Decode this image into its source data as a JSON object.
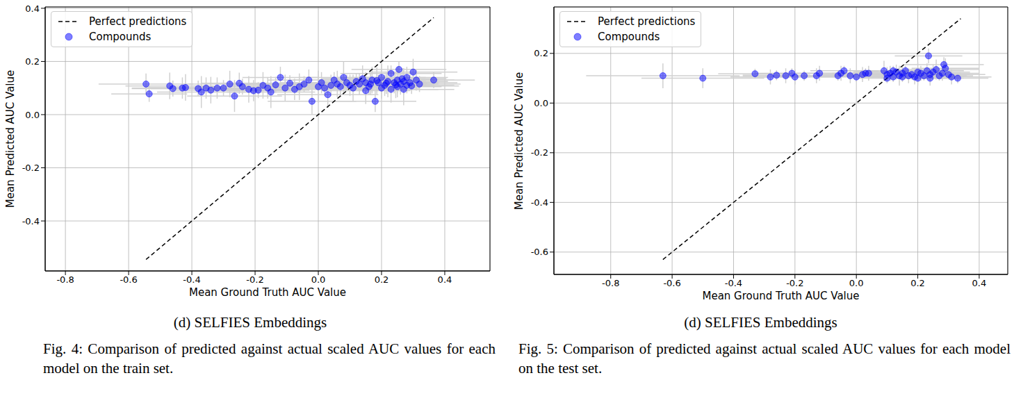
{
  "chart_data": [
    {
      "type": "scatter",
      "subcaption": "(d) SELFIES Embeddings",
      "caption": "Fig. 4: Comparison of predicted against actual scaled AUC values for each model on the train set.",
      "x_label": "Mean Ground Truth AUC Value",
      "y_label": "Mean Predicted AUC Value",
      "xlim": [
        -0.864,
        0.543
      ],
      "xticks": [
        -0.8,
        -0.6,
        -0.4,
        -0.2,
        {
          "value": 0,
          "label": "0.0"
        },
        0.2,
        0.4
      ],
      "ylim": [
        -0.588,
        0.405
      ],
      "yticks": [
        -0.4,
        -0.2,
        {
          "value": 0,
          "label": "0.0"
        },
        0.2,
        0.4
      ],
      "grid": true,
      "legend": "upper left",
      "series": [
        {
          "name": "Perfect predictions",
          "type": "line",
          "line_style": "dashed",
          "color": "#000000",
          "x": [
            -0.545,
            0.365
          ],
          "values": [
            -0.545,
            0.365
          ]
        },
        {
          "name": "Compounds",
          "type": "scatter",
          "marker": "circle",
          "color": "#0000ff",
          "x": [
            -0.545,
            -0.535,
            -0.47,
            -0.46,
            -0.43,
            -0.42,
            -0.38,
            -0.37,
            -0.355,
            -0.34,
            -0.32,
            -0.3,
            -0.28,
            -0.265,
            -0.25,
            -0.24,
            -0.22,
            -0.205,
            -0.19,
            -0.175,
            -0.16,
            -0.15,
            -0.135,
            -0.12,
            -0.105,
            -0.09,
            -0.075,
            -0.06,
            -0.045,
            -0.03,
            -0.02,
            0.0,
            0.01,
            0.02,
            0.03,
            0.04,
            0.05,
            0.06,
            0.07,
            0.08,
            0.09,
            0.1,
            0.11,
            0.12,
            0.13,
            0.14,
            0.15,
            0.16,
            0.17,
            0.18,
            0.19,
            0.2,
            0.21,
            0.22,
            0.23,
            0.24,
            0.25,
            0.255,
            0.26,
            0.27,
            0.28,
            0.29,
            0.3,
            0.31,
            0.32,
            0.23,
            0.25,
            0.27,
            0.365,
            0.2,
            0.15,
            0.28,
            0.215,
            0.245,
            0.265,
            0.295,
            0.185,
            0.165
          ],
          "values": [
            0.115,
            0.078,
            0.108,
            0.098,
            0.1,
            0.102,
            0.098,
            0.085,
            0.1,
            0.092,
            0.1,
            0.1,
            0.115,
            0.07,
            0.118,
            0.105,
            0.095,
            0.09,
            0.092,
            0.11,
            0.1,
            0.085,
            0.112,
            0.14,
            0.1,
            0.118,
            0.095,
            0.105,
            0.115,
            0.13,
            0.05,
            0.105,
            0.12,
            0.1,
            0.075,
            0.11,
            0.13,
            0.115,
            0.105,
            0.14,
            0.12,
            0.11,
            0.1,
            0.125,
            0.115,
            0.135,
            0.12,
            0.105,
            0.13,
            0.05,
            0.12,
            0.14,
            0.11,
            0.125,
            0.155,
            0.12,
            0.13,
            0.17,
            0.115,
            0.125,
            0.14,
            0.12,
            0.16,
            0.13,
            0.115,
            0.095,
            0.105,
            0.095,
            0.13,
            0.1,
            0.09,
            0.11,
            0.118,
            0.112,
            0.135,
            0.108,
            0.128,
            0.115
          ],
          "x_error": [
            0.15,
            0.12,
            0.14,
            0.13,
            0.16,
            0.12,
            0.15,
            0.14,
            0.13,
            0.12,
            0.14,
            0.16,
            0.13,
            0.15,
            0.12,
            0.14,
            0.13,
            0.15,
            0.16,
            0.12,
            0.13,
            0.14,
            0.15,
            0.12,
            0.16,
            0.13,
            0.14,
            0.15,
            0.12,
            0.13,
            0.14,
            0.15,
            0.13,
            0.12,
            0.16,
            0.14,
            0.13,
            0.15,
            0.12,
            0.14,
            0.13,
            0.15,
            0.14,
            0.12,
            0.16,
            0.13,
            0.14,
            0.15,
            0.12,
            0.13,
            0.15,
            0.14,
            0.13,
            0.12,
            0.16,
            0.14,
            0.13,
            0.15,
            0.12,
            0.14,
            0.13,
            0.15,
            0.14,
            0.12,
            0.13,
            0.15,
            0.14,
            0.16,
            0.13,
            0.12,
            0.14,
            0.15,
            0.13,
            0.12,
            0.14,
            0.15,
            0.13,
            0.14
          ],
          "y_error": [
            0.04,
            0.03,
            0.05,
            0.03,
            0.04,
            0.05,
            0.03,
            0.06,
            0.04,
            0.05,
            0.04,
            0.03,
            0.05,
            0.06,
            0.04,
            0.03,
            0.05,
            0.04,
            0.03,
            0.05,
            0.04,
            0.06,
            0.03,
            0.04,
            0.05,
            0.03,
            0.04,
            0.05,
            0.03,
            0.04,
            0.05,
            0.06,
            0.04,
            0.03,
            0.05,
            0.04,
            0.03,
            0.05,
            0.04,
            0.06,
            0.03,
            0.04,
            0.05,
            0.03,
            0.04,
            0.05,
            0.04,
            0.03,
            0.05,
            0.04,
            0.03,
            0.05,
            0.04,
            0.06,
            0.03,
            0.04,
            0.05,
            0.03,
            0.04,
            0.05,
            0.04,
            0.03,
            0.05,
            0.04,
            0.03,
            0.05,
            0.04,
            0.06,
            0.03,
            0.04,
            0.05,
            0.03,
            0.04,
            0.05,
            0.04,
            0.03,
            0.05,
            0.04
          ]
        }
      ]
    },
    {
      "type": "scatter",
      "subcaption": "(d) SELFIES Embeddings",
      "caption": "Fig. 5: Comparison of predicted against actual scaled AUC values for each model on the test set.",
      "x_label": "Mean Ground Truth AUC Value",
      "y_label": "Mean Predicted AUC Value",
      "xlim": [
        -0.985,
        0.493
      ],
      "xticks": [
        -0.8,
        -0.6,
        -0.4,
        -0.2,
        {
          "value": 0,
          "label": "0.0"
        },
        0.2,
        0.4
      ],
      "ylim": [
        -0.69,
        0.387
      ],
      "yticks": [
        -0.6,
        -0.4,
        -0.2,
        {
          "value": 0,
          "label": "0.0"
        },
        0.2
      ],
      "grid": true,
      "legend": "upper left",
      "series": [
        {
          "name": "Perfect predictions",
          "type": "line",
          "line_style": "dashed",
          "color": "#000000",
          "x": [
            -0.63,
            0.34
          ],
          "values": [
            -0.63,
            0.34
          ]
        },
        {
          "name": "Compounds",
          "type": "scatter",
          "marker": "circle",
          "color": "#0000ff",
          "x": [
            -0.63,
            -0.5,
            -0.33,
            -0.28,
            -0.26,
            -0.23,
            -0.21,
            -0.2,
            -0.17,
            -0.13,
            -0.12,
            -0.06,
            -0.05,
            -0.04,
            -0.02,
            0.0,
            0.02,
            0.03,
            0.04,
            0.09,
            0.1,
            0.1,
            0.11,
            0.12,
            0.13,
            0.14,
            0.15,
            0.16,
            0.17,
            0.18,
            0.19,
            0.2,
            0.21,
            0.22,
            0.23,
            0.235,
            0.24,
            0.25,
            0.26,
            0.27,
            0.28,
            0.285,
            0.29,
            0.3,
            0.31,
            0.33,
            0.2,
            0.15,
            0.24,
            0.12
          ],
          "values": [
            0.11,
            0.1,
            0.118,
            0.105,
            0.112,
            0.11,
            0.12,
            0.105,
            0.11,
            0.11,
            0.12,
            0.11,
            0.12,
            0.13,
            0.11,
            0.105,
            0.115,
            0.12,
            0.12,
            0.13,
            0.115,
            0.1,
            0.12,
            0.105,
            0.125,
            0.11,
            0.12,
            0.13,
            0.11,
            0.115,
            0.105,
            0.125,
            0.12,
            0.11,
            0.13,
            0.19,
            0.115,
            0.125,
            0.135,
            0.11,
            0.12,
            0.155,
            0.14,
            0.115,
            0.105,
            0.1,
            0.1,
            0.105,
            0.1,
            0.13
          ],
          "x_error": [
            0.25,
            0.2,
            0.12,
            0.13,
            0.11,
            0.14,
            0.12,
            0.13,
            0.11,
            0.12,
            0.14,
            0.13,
            0.12,
            0.11,
            0.13,
            0.12,
            0.14,
            0.11,
            0.13,
            0.12,
            0.14,
            0.11,
            0.13,
            0.12,
            0.14,
            0.13,
            0.11,
            0.12,
            0.14,
            0.13,
            0.12,
            0.11,
            0.13,
            0.14,
            0.12,
            0.11,
            0.13,
            0.12,
            0.14,
            0.11,
            0.12,
            0.13,
            0.11,
            0.12,
            0.13,
            0.1,
            0.12,
            0.13,
            0.11,
            0.12
          ],
          "y_error": [
            0.05,
            0.04,
            0.02,
            0.03,
            0.02,
            0.03,
            0.02,
            0.03,
            0.02,
            0.03,
            0.03,
            0.02,
            0.03,
            0.02,
            0.03,
            0.02,
            0.03,
            0.02,
            0.03,
            0.04,
            0.03,
            0.02,
            0.03,
            0.02,
            0.03,
            0.04,
            0.03,
            0.02,
            0.03,
            0.02,
            0.03,
            0.04,
            0.03,
            0.02,
            0.03,
            0.03,
            0.02,
            0.03,
            0.04,
            0.02,
            0.03,
            0.03,
            0.04,
            0.02,
            0.03,
            0.02,
            0.03,
            0.02,
            0.03,
            0.02
          ]
        }
      ]
    }
  ]
}
